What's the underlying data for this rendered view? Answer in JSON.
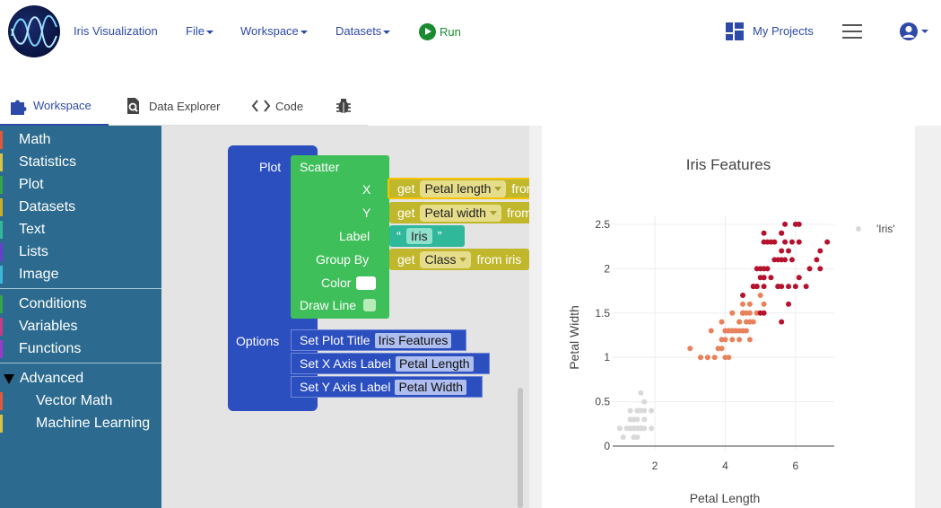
{
  "navbar": {
    "app_title": "Iris Visualization",
    "menus": [
      "File",
      "Workspace",
      "Datasets"
    ],
    "run_label": "Run",
    "my_projects_label": "My Projects"
  },
  "tabs": [
    {
      "label": "Workspace",
      "icon": "puzzle-icon",
      "active": true
    },
    {
      "label": "Data Explorer",
      "icon": "magnify-icon",
      "active": false
    },
    {
      "label": "Code",
      "icon": "code-icon",
      "active": false
    },
    {
      "label": "",
      "icon": "bug-icon",
      "active": false
    }
  ],
  "sidebar": {
    "group1": [
      {
        "label": "Math",
        "color": "#e05a3a"
      },
      {
        "label": "Statistics",
        "color": "#d4c44a"
      },
      {
        "label": "Plot",
        "color": "#3aa34a"
      },
      {
        "label": "Datasets",
        "color": "#c8b02a"
      },
      {
        "label": "Text",
        "color": "#2fb89a"
      },
      {
        "label": "Lists",
        "color": "#6a3ec8"
      },
      {
        "label": "Image",
        "color": "#39b8d8"
      }
    ],
    "group2": [
      {
        "label": "Conditions",
        "color": "#3aa34a"
      },
      {
        "label": "Variables",
        "color": "#c83a8a"
      },
      {
        "label": "Functions",
        "color": "#9a3ac8"
      }
    ],
    "advanced_label": "Advanced",
    "advanced_items": [
      {
        "label": "Vector Math",
        "color": "#e05a3a"
      },
      {
        "label": "Machine Learning",
        "color": "#d4c44a"
      }
    ]
  },
  "blocks": {
    "plot_label": "Plot",
    "options_label": "Options",
    "scatter_label": "Scatter",
    "x_label": "X",
    "y_label": "Y",
    "label_label": "Label",
    "groupby_label": "Group By",
    "color_label": "Color",
    "drawline_label": "Draw Line",
    "get_word": "get",
    "from_word": "from",
    "x_value": "Petal length",
    "y_value": "Petal width",
    "label_value": "Iris",
    "groupby_value": "Class",
    "groupby_source": "from iris",
    "open_quote": "“",
    "close_quote": "”",
    "opt_title_label": "Set Plot Title",
    "opt_title_value": "Iris Features",
    "opt_x_label": "Set X Axis Label",
    "opt_x_value": "Petal Length",
    "opt_y_label": "Set Y Axis Label",
    "opt_y_value": "Petal Width"
  },
  "chart_data": {
    "type": "scatter",
    "title": "Iris Features",
    "xlabel": "Petal Length",
    "ylabel": "Petal Width",
    "xlim": [
      0.8,
      7.1
    ],
    "ylim": [
      -0.05,
      2.6
    ],
    "xticks": [
      2,
      4,
      6
    ],
    "yticks": [
      0,
      0.5,
      1,
      1.5,
      2,
      2.5
    ],
    "grid": true,
    "legend": {
      "position": "top-right",
      "entries": [
        "'Iris'"
      ]
    },
    "series": [
      {
        "name": "'Iris'",
        "color": "#d9d9d9",
        "points": [
          [
            1.4,
            0.2
          ],
          [
            1.4,
            0.2
          ],
          [
            1.3,
            0.2
          ],
          [
            1.5,
            0.2
          ],
          [
            1.4,
            0.2
          ],
          [
            1.7,
            0.4
          ],
          [
            1.4,
            0.3
          ],
          [
            1.5,
            0.2
          ],
          [
            1.4,
            0.2
          ],
          [
            1.5,
            0.1
          ],
          [
            1.5,
            0.2
          ],
          [
            1.6,
            0.2
          ],
          [
            1.4,
            0.1
          ],
          [
            1.1,
            0.1
          ],
          [
            1.2,
            0.2
          ],
          [
            1.5,
            0.4
          ],
          [
            1.3,
            0.4
          ],
          [
            1.4,
            0.3
          ],
          [
            1.7,
            0.3
          ],
          [
            1.5,
            0.3
          ],
          [
            1.7,
            0.2
          ],
          [
            1.5,
            0.4
          ],
          [
            1.0,
            0.2
          ],
          [
            1.7,
            0.5
          ],
          [
            1.9,
            0.2
          ],
          [
            1.6,
            0.2
          ],
          [
            1.6,
            0.4
          ],
          [
            1.5,
            0.2
          ],
          [
            1.4,
            0.2
          ],
          [
            1.6,
            0.2
          ],
          [
            1.6,
            0.2
          ],
          [
            1.5,
            0.4
          ],
          [
            1.5,
            0.1
          ],
          [
            1.4,
            0.2
          ],
          [
            1.5,
            0.2
          ],
          [
            1.2,
            0.2
          ],
          [
            1.3,
            0.2
          ],
          [
            1.4,
            0.1
          ],
          [
            1.3,
            0.2
          ],
          [
            1.5,
            0.2
          ],
          [
            1.3,
            0.3
          ],
          [
            1.3,
            0.3
          ],
          [
            1.3,
            0.2
          ],
          [
            1.6,
            0.6
          ],
          [
            1.9,
            0.4
          ],
          [
            1.4,
            0.3
          ],
          [
            1.6,
            0.2
          ],
          [
            1.4,
            0.2
          ],
          [
            1.5,
            0.2
          ],
          [
            1.4,
            0.2
          ]
        ]
      },
      {
        "name": "",
        "color": "#e8825c",
        "points": [
          [
            4.7,
            1.4
          ],
          [
            4.5,
            1.5
          ],
          [
            4.9,
            1.5
          ],
          [
            4.0,
            1.3
          ],
          [
            4.6,
            1.5
          ],
          [
            4.5,
            1.3
          ],
          [
            4.7,
            1.6
          ],
          [
            3.3,
            1.0
          ],
          [
            4.6,
            1.3
          ],
          [
            3.9,
            1.4
          ],
          [
            3.5,
            1.0
          ],
          [
            4.2,
            1.5
          ],
          [
            4.0,
            1.0
          ],
          [
            4.7,
            1.4
          ],
          [
            3.6,
            1.3
          ],
          [
            4.4,
            1.4
          ],
          [
            4.5,
            1.5
          ],
          [
            4.1,
            1.0
          ],
          [
            4.5,
            1.5
          ],
          [
            3.9,
            1.1
          ],
          [
            4.8,
            1.8
          ],
          [
            4.0,
            1.3
          ],
          [
            4.9,
            1.5
          ],
          [
            4.7,
            1.2
          ],
          [
            4.3,
            1.3
          ],
          [
            4.4,
            1.4
          ],
          [
            4.8,
            1.4
          ],
          [
            5.0,
            1.7
          ],
          [
            4.5,
            1.5
          ],
          [
            3.5,
            1.0
          ],
          [
            3.8,
            1.1
          ],
          [
            3.7,
            1.0
          ],
          [
            3.9,
            1.2
          ],
          [
            5.1,
            1.6
          ],
          [
            4.5,
            1.5
          ],
          [
            4.5,
            1.6
          ],
          [
            4.7,
            1.5
          ],
          [
            4.4,
            1.3
          ],
          [
            4.1,
            1.3
          ],
          [
            4.0,
            1.3
          ],
          [
            4.4,
            1.2
          ],
          [
            4.6,
            1.4
          ],
          [
            4.0,
            1.2
          ],
          [
            3.3,
            1.0
          ],
          [
            4.2,
            1.3
          ],
          [
            4.2,
            1.2
          ],
          [
            4.2,
            1.3
          ],
          [
            4.3,
            1.3
          ],
          [
            3.0,
            1.1
          ],
          [
            4.1,
            1.3
          ]
        ]
      },
      {
        "name": "",
        "color": "#b5122e",
        "points": [
          [
            6.0,
            2.5
          ],
          [
            5.1,
            1.9
          ],
          [
            5.9,
            2.1
          ],
          [
            5.6,
            1.8
          ],
          [
            5.8,
            2.2
          ],
          [
            6.6,
            2.1
          ],
          [
            4.5,
            1.7
          ],
          [
            6.3,
            1.8
          ],
          [
            5.8,
            1.8
          ],
          [
            6.1,
            2.5
          ],
          [
            5.1,
            2.0
          ],
          [
            5.3,
            1.9
          ],
          [
            5.5,
            2.1
          ],
          [
            5.0,
            2.0
          ],
          [
            5.1,
            2.4
          ],
          [
            5.3,
            2.3
          ],
          [
            5.5,
            1.8
          ],
          [
            6.7,
            2.2
          ],
          [
            6.9,
            2.3
          ],
          [
            5.0,
            1.5
          ],
          [
            5.7,
            2.3
          ],
          [
            4.9,
            2.0
          ],
          [
            6.7,
            2.0
          ],
          [
            4.9,
            1.8
          ],
          [
            5.7,
            2.1
          ],
          [
            6.0,
            1.8
          ],
          [
            4.8,
            1.8
          ],
          [
            4.9,
            1.8
          ],
          [
            5.6,
            2.1
          ],
          [
            5.8,
            1.6
          ],
          [
            6.1,
            1.9
          ],
          [
            6.4,
            2.0
          ],
          [
            5.6,
            2.2
          ],
          [
            5.1,
            1.5
          ],
          [
            5.6,
            1.4
          ],
          [
            6.1,
            2.3
          ],
          [
            5.6,
            2.4
          ],
          [
            5.5,
            1.8
          ],
          [
            4.8,
            1.8
          ],
          [
            5.4,
            2.1
          ],
          [
            5.6,
            2.4
          ],
          [
            5.1,
            2.3
          ],
          [
            5.1,
            1.9
          ],
          [
            5.9,
            2.3
          ],
          [
            5.7,
            2.5
          ],
          [
            5.2,
            2.3
          ],
          [
            5.0,
            1.9
          ],
          [
            5.2,
            2.0
          ],
          [
            5.4,
            2.3
          ],
          [
            5.1,
            1.8
          ]
        ]
      }
    ]
  }
}
